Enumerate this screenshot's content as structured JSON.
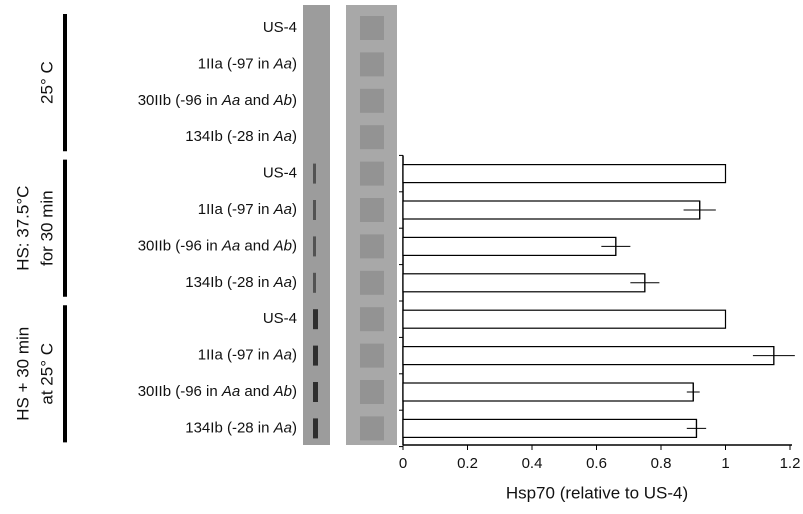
{
  "chart_data": {
    "type": "bar",
    "orientation": "horizontal",
    "x_label": "Hsp70 (relative to US-4)",
    "categories": [
      [
        {
          "text": "US-4"
        }
      ],
      [
        {
          "text": "1IIa (-97 in "
        },
        {
          "text": "Aa",
          "italic": true
        },
        {
          "text": ")"
        }
      ],
      [
        {
          "text": "30IIb (-96 in "
        },
        {
          "text": "Aa",
          "italic": true
        },
        {
          "text": " and "
        },
        {
          "text": "Ab",
          "italic": true
        },
        {
          "text": ")"
        }
      ],
      [
        {
          "text": "134Ib (-28 in "
        },
        {
          "text": "Aa",
          "italic": true
        },
        {
          "text": ")"
        }
      ],
      [
        {
          "text": "US-4"
        }
      ],
      [
        {
          "text": "1IIa (-97 in "
        },
        {
          "text": "Aa",
          "italic": true
        },
        {
          "text": ")"
        }
      ],
      [
        {
          "text": "30IIb (-96 in "
        },
        {
          "text": "Aa",
          "italic": true
        },
        {
          "text": " and "
        },
        {
          "text": "Ab",
          "italic": true
        },
        {
          "text": ")"
        }
      ],
      [
        {
          "text": "134Ib (-28 in "
        },
        {
          "text": "Aa",
          "italic": true
        },
        {
          "text": ")"
        }
      ],
      [
        {
          "text": "US-4"
        }
      ],
      [
        {
          "text": "1IIa (-97 in "
        },
        {
          "text": "Aa",
          "italic": true
        },
        {
          "text": ")"
        }
      ],
      [
        {
          "text": "30IIb (-96 in "
        },
        {
          "text": "Aa",
          "italic": true
        },
        {
          "text": " and "
        },
        {
          "text": "Ab",
          "italic": true
        },
        {
          "text": ")"
        }
      ],
      [
        {
          "text": "134Ib (-28 in "
        },
        {
          "text": "Aa",
          "italic": true
        },
        {
          "text": ")"
        }
      ]
    ],
    "values": [
      null,
      null,
      null,
      null,
      1.0,
      0.92,
      0.66,
      0.75,
      1.0,
      1.15,
      0.9,
      0.91
    ],
    "errors": [
      null,
      null,
      null,
      null,
      null,
      0.05,
      0.045,
      0.045,
      null,
      0.065,
      0.02,
      0.03
    ],
    "groups": [
      [
        "25° C"
      ],
      [
        "HS: 37.5°C",
        "for 30 min"
      ],
      [
        "HS + 30 min",
        "at 25° C"
      ]
    ],
    "color": "#ffffff",
    "xlim": [
      0,
      1.2
    ],
    "xticks": [
      0,
      0.2,
      0.4,
      0.6,
      0.8,
      1,
      1.2
    ]
  }
}
